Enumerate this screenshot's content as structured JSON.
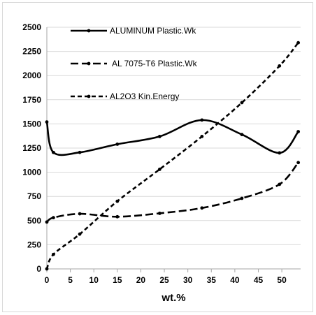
{
  "chart_data": {
    "type": "line",
    "title": "",
    "xlabel": "wt.%",
    "ylabel": "",
    "xlim": [
      0,
      54
    ],
    "ylim": [
      0,
      2500
    ],
    "grid": true,
    "legend_placement": "top-left",
    "x_ticks": [
      "0",
      "5",
      "10",
      "15",
      "20",
      "25",
      "30",
      "35",
      "40",
      "45",
      "50"
    ],
    "y_ticks": [
      "0",
      "250",
      "500",
      "750",
      "1000",
      "1250",
      "1500",
      "1750",
      "2000",
      "2250",
      "2500"
    ],
    "series": [
      {
        "name": "ALUMINUM Plastic.Wk",
        "style": "solid",
        "color": "#000000",
        "x": [
          0,
          1.4,
          7,
          15,
          24,
          33,
          41.5,
          49.5,
          53.5
        ],
        "y": [
          1520,
          1205,
          1205,
          1290,
          1370,
          1540,
          1390,
          1200,
          1420
        ]
      },
      {
        "name": "AL 7075-T6 Plastic.Wk",
        "style": "long-dash",
        "color": "#000000",
        "x": [
          0,
          1.4,
          7,
          15,
          24,
          33,
          41.5,
          49.5,
          53.5
        ],
        "y": [
          485,
          530,
          570,
          540,
          575,
          630,
          730,
          875,
          1100
        ]
      },
      {
        "name": "AL2O3 Kin.Energy",
        "style": "short-dash",
        "color": "#000000",
        "x": [
          0,
          1.4,
          7,
          15,
          24,
          33,
          41.5,
          49.5,
          53.5
        ],
        "y": [
          0,
          150,
          360,
          700,
          1030,
          1370,
          1720,
          2100,
          2340
        ]
      }
    ]
  }
}
